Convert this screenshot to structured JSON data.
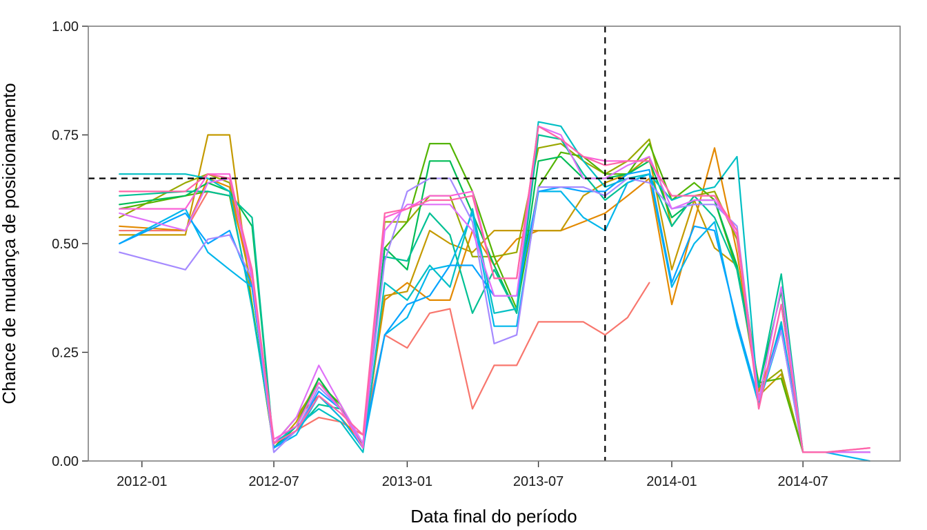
{
  "chart_data": {
    "type": "line",
    "title": "",
    "xlabel": "Data final do período",
    "ylabel": "Chance de mudança de posicionamento",
    "xlim": [
      "2011-10-19",
      "2014-11-12"
    ],
    "ylim": [
      0,
      1
    ],
    "x_ticks": [
      {
        "date": "2012-01-01",
        "label": "2012-01"
      },
      {
        "date": "2012-07-01",
        "label": "2012-07"
      },
      {
        "date": "2013-01-01",
        "label": "2013-01"
      },
      {
        "date": "2013-07-01",
        "label": "2013-07"
      },
      {
        "date": "2014-01-01",
        "label": "2014-01"
      },
      {
        "date": "2014-07-01",
        "label": "2014-07"
      }
    ],
    "y_ticks": [
      {
        "value": 0,
        "label": "0.00"
      },
      {
        "value": 0.25,
        "label": "0.25"
      },
      {
        "value": 0.5,
        "label": "0.50"
      },
      {
        "value": 0.75,
        "label": "0.75"
      },
      {
        "value": 1,
        "label": "1.00"
      }
    ],
    "grid": false,
    "legend": "none",
    "reference_lines": {
      "hline": 0.65,
      "vline": "2013-10-01"
    },
    "x": [
      "2011-12-01",
      "2012-03-01",
      "2012-04-01",
      "2012-05-01",
      "2012-06-01",
      "2012-07-01",
      "2012-08-01",
      "2012-09-01",
      "2012-10-01",
      "2012-11-01",
      "2012-12-01",
      "2013-01-01",
      "2013-02-01",
      "2013-03-01",
      "2013-04-01",
      "2013-05-01",
      "2013-06-01",
      "2013-07-01",
      "2013-08-01",
      "2013-09-01",
      "2013-10-01",
      "2013-11-01",
      "2013-12-01",
      "2014-01-01",
      "2014-02-01",
      "2014-03-01",
      "2014-04-01",
      "2014-05-01",
      "2014-06-01",
      "2014-07-01",
      "2014-08-01",
      "2014-10-01"
    ],
    "series": [
      {
        "color": "#F8766D",
        "values": [
          0.53,
          0.53,
          0.62,
          0.61,
          0.43,
          0.03,
          0.07,
          0.1,
          0.09,
          0.06,
          0.29,
          0.26,
          0.34,
          0.35,
          0.12,
          0.22,
          0.22,
          0.32,
          0.32,
          0.32,
          0.29,
          0.33,
          0.41,
          null,
          null,
          null,
          null,
          null,
          null,
          null,
          null,
          null
        ]
      },
      {
        "color": "#E38900",
        "values": [
          0.54,
          0.53,
          0.65,
          0.63,
          0.4,
          0.04,
          0.1,
          0.15,
          0.1,
          0.04,
          0.37,
          0.41,
          0.37,
          0.37,
          0.53,
          0.45,
          0.51,
          0.53,
          0.53,
          0.55,
          0.57,
          0.61,
          0.65,
          0.36,
          0.55,
          0.72,
          0.48,
          0.16,
          0.3,
          0.02,
          0.02,
          0.02
        ]
      },
      {
        "color": "#C49A00",
        "values": [
          0.52,
          0.52,
          0.75,
          0.75,
          0.36,
          0.03,
          0.09,
          0.19,
          0.12,
          0.03,
          0.38,
          0.39,
          0.53,
          0.5,
          0.48,
          0.53,
          0.53,
          0.53,
          0.53,
          0.61,
          0.64,
          0.66,
          0.7,
          0.44,
          0.6,
          0.49,
          0.45,
          0.15,
          0.2,
          0.02,
          0.02,
          0.02
        ]
      },
      {
        "color": "#99A800",
        "values": [
          0.56,
          0.64,
          0.66,
          0.64,
          0.43,
          0.04,
          0.1,
          0.18,
          0.13,
          0.03,
          0.55,
          0.55,
          0.61,
          0.61,
          0.47,
          0.47,
          0.48,
          0.72,
          0.73,
          0.69,
          0.66,
          0.69,
          0.74,
          0.54,
          0.61,
          0.62,
          0.51,
          0.17,
          0.21,
          0.02,
          0.02,
          0.02
        ]
      },
      {
        "color": "#53B400",
        "values": [
          0.58,
          0.61,
          0.62,
          0.61,
          0.36,
          0.03,
          0.08,
          0.18,
          0.13,
          0.03,
          0.49,
          0.55,
          0.73,
          0.73,
          0.62,
          0.47,
          0.35,
          0.63,
          0.71,
          0.7,
          0.66,
          0.66,
          0.73,
          0.6,
          0.64,
          0.6,
          0.44,
          0.18,
          0.19,
          0.02,
          0.02,
          0.02
        ]
      },
      {
        "color": "#00BC56",
        "values": [
          0.59,
          0.61,
          0.64,
          0.62,
          0.54,
          0.03,
          0.08,
          0.19,
          0.12,
          0.04,
          0.49,
          0.44,
          0.69,
          0.69,
          0.57,
          0.45,
          0.34,
          0.69,
          0.7,
          0.65,
          0.65,
          0.66,
          0.69,
          0.56,
          0.6,
          0.6,
          0.45,
          0.17,
          0.39,
          0.02,
          0.02,
          0.02
        ]
      },
      {
        "color": "#00C094",
        "values": [
          0.61,
          0.62,
          0.62,
          0.61,
          0.56,
          0.03,
          0.07,
          0.13,
          0.12,
          0.04,
          0.47,
          0.46,
          0.57,
          0.52,
          0.34,
          0.44,
          0.34,
          0.75,
          0.74,
          0.66,
          0.6,
          0.64,
          0.66,
          0.54,
          0.61,
          0.56,
          0.44,
          0.17,
          0.43,
          0.02,
          0.02,
          0.02
        ]
      },
      {
        "color": "#00BFC4",
        "values": [
          0.66,
          0.66,
          0.65,
          0.62,
          0.35,
          0.04,
          0.08,
          0.12,
          0.09,
          0.02,
          0.41,
          0.37,
          0.45,
          0.4,
          0.58,
          0.34,
          0.35,
          0.78,
          0.77,
          0.69,
          0.63,
          0.65,
          0.66,
          0.6,
          0.62,
          0.63,
          0.7,
          0.13,
          0.32,
          0.02,
          0.02,
          0.02
        ]
      },
      {
        "color": "#00B6EB",
        "values": [
          0.5,
          0.58,
          0.48,
          0.44,
          0.4,
          0.03,
          0.06,
          0.15,
          0.1,
          0.03,
          0.29,
          0.33,
          0.44,
          0.45,
          0.57,
          0.31,
          0.31,
          0.62,
          0.62,
          0.56,
          0.53,
          0.64,
          0.66,
          0.4,
          0.5,
          0.55,
          0.31,
          0.13,
          0.3,
          0.02,
          0.02,
          0.0
        ]
      },
      {
        "color": "#06A4FF",
        "values": [
          0.5,
          0.57,
          0.5,
          0.53,
          0.4,
          0.03,
          0.07,
          0.16,
          0.12,
          0.04,
          0.29,
          0.36,
          0.38,
          0.45,
          0.45,
          0.38,
          0.38,
          0.62,
          0.63,
          0.62,
          0.62,
          0.66,
          0.67,
          0.41,
          0.54,
          0.53,
          0.32,
          0.14,
          0.31,
          0.02,
          0.02,
          0.02
        ]
      },
      {
        "color": "#A58AFF",
        "values": [
          0.48,
          0.44,
          0.51,
          0.52,
          0.42,
          0.02,
          0.07,
          0.17,
          0.12,
          0.04,
          0.46,
          0.62,
          0.65,
          0.65,
          0.55,
          0.27,
          0.29,
          0.63,
          0.63,
          0.63,
          0.61,
          0.65,
          0.64,
          0.58,
          0.59,
          0.59,
          0.54,
          0.14,
          0.3,
          0.02,
          0.02,
          0.02
        ]
      },
      {
        "color": "#DF70F8",
        "values": [
          0.57,
          0.53,
          0.64,
          0.65,
          0.42,
          0.04,
          0.1,
          0.22,
          0.13,
          0.04,
          0.53,
          0.59,
          0.59,
          0.59,
          0.53,
          0.38,
          0.38,
          0.77,
          0.75,
          0.65,
          0.65,
          0.68,
          0.7,
          0.58,
          0.6,
          0.6,
          0.53,
          0.14,
          0.4,
          0.02,
          0.02,
          0.02
        ]
      },
      {
        "color": "#FB61D7",
        "values": [
          0.58,
          0.58,
          0.66,
          0.66,
          0.43,
          0.05,
          0.08,
          0.18,
          0.12,
          0.03,
          0.56,
          0.58,
          0.61,
          0.61,
          0.62,
          0.42,
          0.42,
          0.77,
          0.74,
          0.7,
          0.69,
          0.69,
          0.69,
          0.61,
          0.61,
          0.61,
          0.52,
          0.12,
          0.36,
          0.02,
          0.02,
          0.03
        ]
      },
      {
        "color": "#FF66A8",
        "values": [
          0.62,
          0.62,
          0.66,
          0.65,
          0.44,
          0.04,
          0.07,
          0.15,
          0.11,
          0.06,
          0.57,
          0.58,
          0.6,
          0.6,
          0.61,
          0.42,
          0.42,
          0.77,
          0.74,
          0.7,
          0.68,
          0.69,
          0.69,
          0.61,
          0.61,
          0.61,
          0.53,
          0.12,
          0.36,
          0.02,
          0.02,
          0.03
        ]
      }
    ]
  }
}
